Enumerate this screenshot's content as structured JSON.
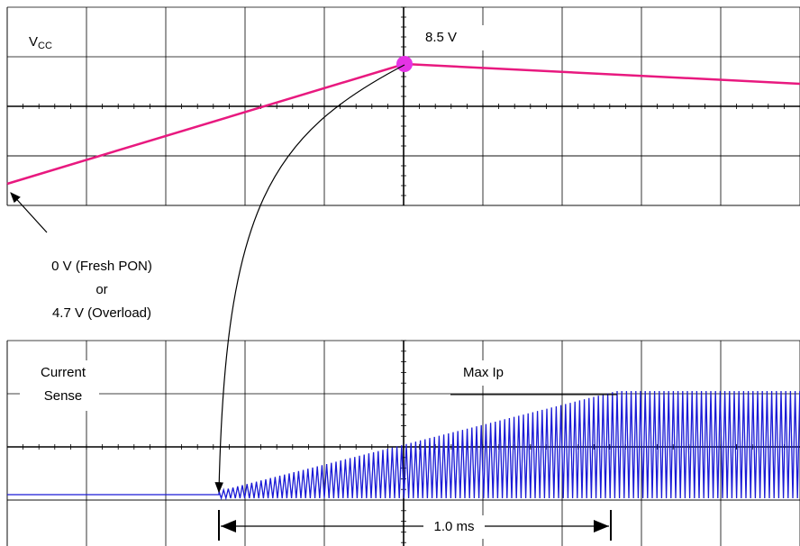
{
  "top_panel": {
    "label": "V",
    "label_sub": "CC",
    "peak_label": "8.5 V"
  },
  "start_note": {
    "line1": "0 V (Fresh PON)",
    "line2": "or",
    "line3": "4.7 V (Overload)"
  },
  "bottom_panel": {
    "label_line1": "Current",
    "label_line2": "Sense",
    "peak_label": "Max Ip",
    "duration_label": "1.0 ms"
  }
}
